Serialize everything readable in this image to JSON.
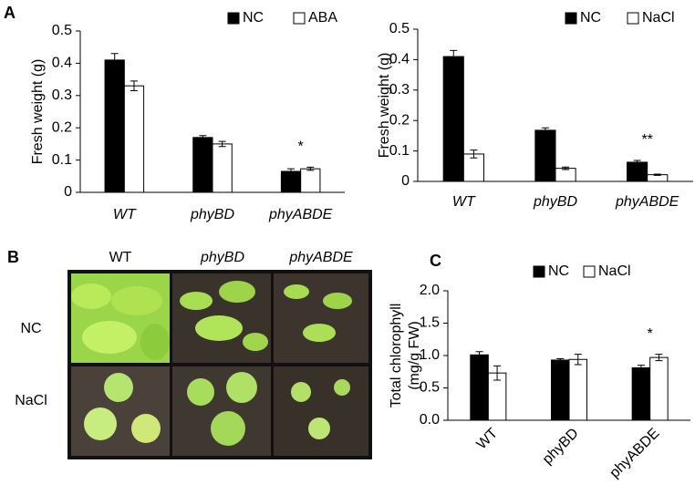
{
  "chart_data": [
    {
      "type": "bar",
      "panel": "A",
      "ylabel": "Fresh weight (g)",
      "categories": [
        "WT",
        "phyBD",
        "phyABDE"
      ],
      "italic_categories": true,
      "series": [
        {
          "name": "NC",
          "color": "#000000",
          "values": [
            0.41,
            0.17,
            0.065
          ],
          "errors": [
            0.02,
            0.006,
            0.008
          ]
        },
        {
          "name": "ABA",
          "color": "#ffffff",
          "values": [
            0.33,
            0.15,
            0.073
          ],
          "errors": [
            0.015,
            0.008,
            0.005
          ]
        }
      ],
      "annotations": [
        "*"
      ],
      "ylim": [
        0,
        0.5
      ],
      "yticks": [
        0,
        0.1,
        0.2,
        0.3,
        0.4,
        0.5
      ]
    },
    {
      "type": "bar",
      "ylabel": "Fresh weight (g)",
      "categories": [
        "WT",
        "phyBD",
        "phyABDE"
      ],
      "italic_categories": true,
      "series": [
        {
          "name": "NC",
          "color": "#000000",
          "values": [
            0.41,
            0.168,
            0.063
          ],
          "errors": [
            0.02,
            0.008,
            0.006
          ]
        },
        {
          "name": "NaCl",
          "color": "#ffffff",
          "values": [
            0.09,
            0.043,
            0.022
          ],
          "errors": [
            0.013,
            0.004,
            0.002
          ]
        }
      ],
      "annotations": [
        "**"
      ],
      "ylim": [
        0,
        0.5
      ],
      "yticks": [
        0,
        0.1,
        0.2,
        0.3,
        0.4,
        0.5
      ]
    },
    {
      "type": "bar",
      "panel": "C",
      "ylabel": [
        "Total chlorophyll",
        "(mg/g FW)"
      ],
      "categories": [
        "WT",
        "phyBD",
        "phyABDE"
      ],
      "x_label_rotation": -45,
      "series": [
        {
          "name": "NC",
          "color": "#000000",
          "values": [
            1.01,
            0.93,
            0.81
          ],
          "errors": [
            0.05,
            0.02,
            0.04
          ]
        },
        {
          "name": "NaCl",
          "color": "#ffffff",
          "values": [
            0.73,
            0.94,
            0.97
          ],
          "errors": [
            0.11,
            0.08,
            0.05
          ]
        }
      ],
      "annotations": [
        "*"
      ],
      "ylim": [
        0,
        2
      ],
      "yticks": [
        {
          "value": 0,
          "label": "0.0"
        },
        {
          "value": 0.5,
          "label": "0.5"
        },
        {
          "value": 1,
          "label": "1.0"
        },
        {
          "value": 1.5,
          "label": "1.5"
        },
        {
          "value": 2,
          "label": "2.0"
        }
      ]
    }
  ],
  "photo_panel": {
    "panel": "B",
    "columns": [
      "WT",
      "phyBD",
      "phyABDE"
    ],
    "rows": [
      "NC",
      "NaCl"
    ]
  }
}
